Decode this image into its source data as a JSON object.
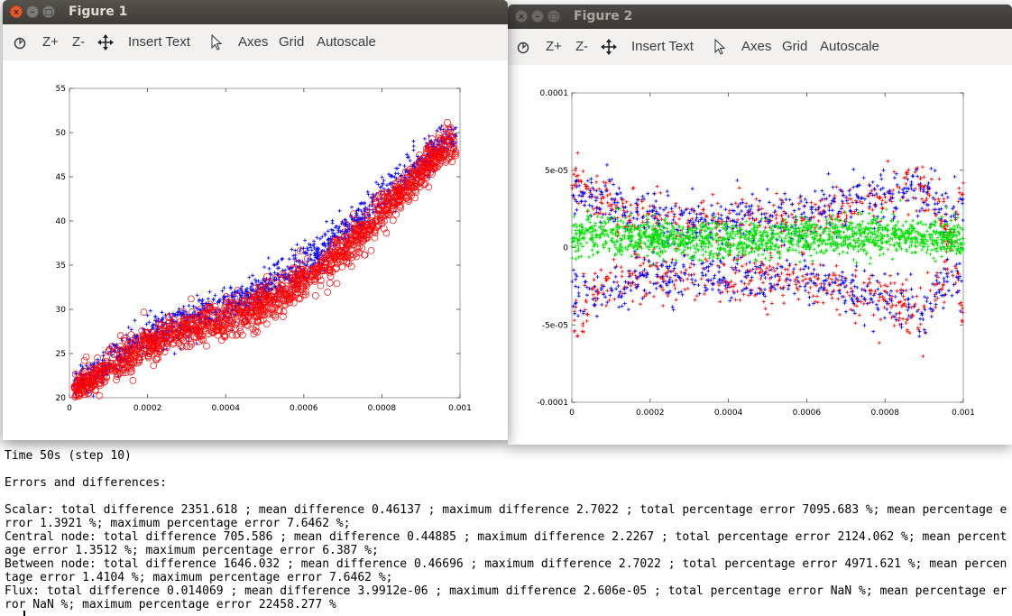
{
  "terminal": {
    "lines": "Time 50s (step 10)\n\nErrors and differences:\n\nScalar: total difference 2351.618 ; mean difference 0.46137 ; maximum difference 2.7022 ; total percentage error 7095.683 %; mean percentage error 1.3921 %; maximum percentage error 7.6462 %;\nCentral node: total difference 705.586 ; mean difference 0.44885 ; maximum difference 2.2267 ; total percentage error 2124.062 %; mean percentage error 1.3512 %; maximum percentage error 6.387 %;\nBetween node: total difference 1646.032 ; mean difference 0.46696 ; maximum difference 2.7022 ; total percentage error 4971.621 %; mean percentage error 1.4104 %; maximum percentage error 7.6462 %;\nFlux: total difference 0.014069 ; mean difference 3.9912e-06 ; maximum difference 2.606e-05 ; total percentage error NaN %; mean percentage error NaN %; maximum percentage error 22458.277 %"
  },
  "toolbar": {
    "zoom_in": "Z+",
    "zoom_out": "Z-",
    "insert_text": "Insert Text",
    "axes": "Axes",
    "grid": "Grid",
    "autoscale": "Autoscale",
    "icons": [
      "rotate-icon",
      "pan-icon",
      "select-arrow-icon"
    ]
  },
  "window_buttons": {
    "close": "×",
    "minimize": "–",
    "maximize": "□"
  },
  "figure1": {
    "title": "Figure 1"
  },
  "figure2": {
    "title": "Figure 2"
  },
  "chart_data": [
    {
      "type": "scatter",
      "title": "",
      "xlabel": "",
      "ylabel": "",
      "xlim": [
        0,
        0.001
      ],
      "ylim": [
        20,
        55
      ],
      "xticks": [
        "0",
        "0.0002",
        "0.0004",
        "0.0006",
        "0.0008",
        "0.001"
      ],
      "yticks": [
        "20",
        "25",
        "30",
        "35",
        "40",
        "45",
        "50",
        "55"
      ],
      "grid": false,
      "series": [
        {
          "color": "#0000ff",
          "marker": "asterisk",
          "x": [
            1e-05,
            5e-05,
            0.0001,
            0.00015,
            0.0002,
            0.00025,
            0.0003,
            0.00035,
            0.0004,
            0.00045,
            0.0005,
            0.00055,
            0.0006,
            0.00065,
            0.0007,
            0.00075,
            0.0008,
            0.00085,
            0.0009,
            0.00095,
            0.00098
          ],
          "y": [
            21.5,
            22.5,
            24.0,
            25.5,
            26.8,
            27.8,
            28.6,
            29.4,
            30.3,
            31.3,
            32.6,
            33.8,
            35.2,
            36.8,
            38.7,
            40.6,
            42.6,
            44.6,
            46.7,
            48.5,
            49.3
          ]
        },
        {
          "color": "#ff0000",
          "marker": "circle",
          "x": [
            1e-05,
            5e-05,
            0.0001,
            0.00015,
            0.0002,
            0.00025,
            0.0003,
            0.00035,
            0.0004,
            0.00045,
            0.0005,
            0.00055,
            0.0006,
            0.00065,
            0.0007,
            0.00075,
            0.0008,
            0.00085,
            0.0009,
            0.00095,
            0.00098
          ],
          "y": [
            20.6,
            21.8,
            23.4,
            24.7,
            25.9,
            26.9,
            27.6,
            28.2,
            28.8,
            29.5,
            30.6,
            31.8,
            33.2,
            34.8,
            36.7,
            38.8,
            41.0,
            43.3,
            45.7,
            47.8,
            48.9
          ]
        }
      ]
    },
    {
      "type": "scatter",
      "title": "",
      "xlabel": "",
      "ylabel": "",
      "xlim": [
        0,
        0.001
      ],
      "ylim": [
        -0.0001,
        0.0001
      ],
      "xticks": [
        "0",
        "0.0002",
        "0.0004",
        "0.0006",
        "0.0008",
        "0.001"
      ],
      "yticks": [
        "-0.0001",
        "-5e-05",
        "0",
        "5e-05",
        "0.0001"
      ],
      "grid": false,
      "series": [
        {
          "color": "#ff0000",
          "marker": "asterisk",
          "x": [
            0,
            5e-05,
            0.0001,
            0.0002,
            0.0003,
            0.0004,
            0.0005,
            0.0006,
            0.0007,
            0.0008,
            0.00085,
            0.0009,
            0.00095,
            0.001
          ],
          "y": [
            5e-05,
            3.5e-05,
            2.5e-05,
            1.8e-05,
            1.7e-05,
            1.8e-05,
            1.9e-05,
            2e-05,
            2.5e-05,
            3.5e-05,
            4e-05,
            4e-05,
            2e-05,
            -4e-05
          ]
        },
        {
          "color": "#0000ff",
          "marker": "asterisk",
          "x": [
            0,
            5e-05,
            0.0001,
            0.0002,
            0.0003,
            0.0004,
            0.0005,
            0.0006,
            0.0007,
            0.0008,
            0.00085,
            0.0009,
            0.00095,
            0.001
          ],
          "y": [
            -3e-05,
            -3.5e-05,
            -2.8e-05,
            -2e-05,
            -1.8e-05,
            -1.8e-05,
            -2e-05,
            -2.2e-05,
            -2.8e-05,
            -3.5e-05,
            -4e-05,
            -4e-05,
            -2e-05,
            -3e-05
          ]
        },
        {
          "color": "#00e000",
          "marker": "asterisk",
          "x": [
            0,
            5e-05,
            0.0001,
            0.0002,
            0.0003,
            0.0004,
            0.0005,
            0.0006,
            0.0007,
            0.0008,
            0.0009,
            0.00095,
            0.001
          ],
          "y": [
            5e-06,
            1e-05,
            8e-06,
            6e-06,
            5e-06,
            5e-06,
            6e-06,
            7e-06,
            8e-06,
            8e-06,
            7e-06,
            6e-06,
            5e-06
          ]
        }
      ]
    }
  ]
}
